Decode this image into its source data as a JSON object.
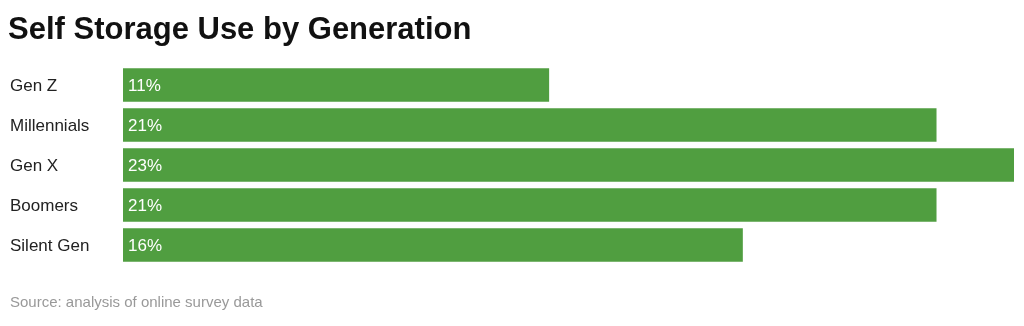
{
  "chart_data": {
    "type": "bar",
    "title": "Self Storage Use by Generation",
    "orientation": "horizontal",
    "categories": [
      "Gen Z",
      "Millennials",
      "Gen X",
      "Boomers",
      "Silent Gen"
    ],
    "series": [
      {
        "color": "#509e40",
        "values": [
          11,
          21,
          23,
          21,
          16
        ],
        "value_labels": [
          "11%",
          "21%",
          "23%",
          "21%",
          "16%"
        ]
      }
    ],
    "xlim": [
      0,
      23
    ],
    "tick_labels": "y",
    "annotations": [
      "Source: analysis of online survey data"
    ]
  }
}
